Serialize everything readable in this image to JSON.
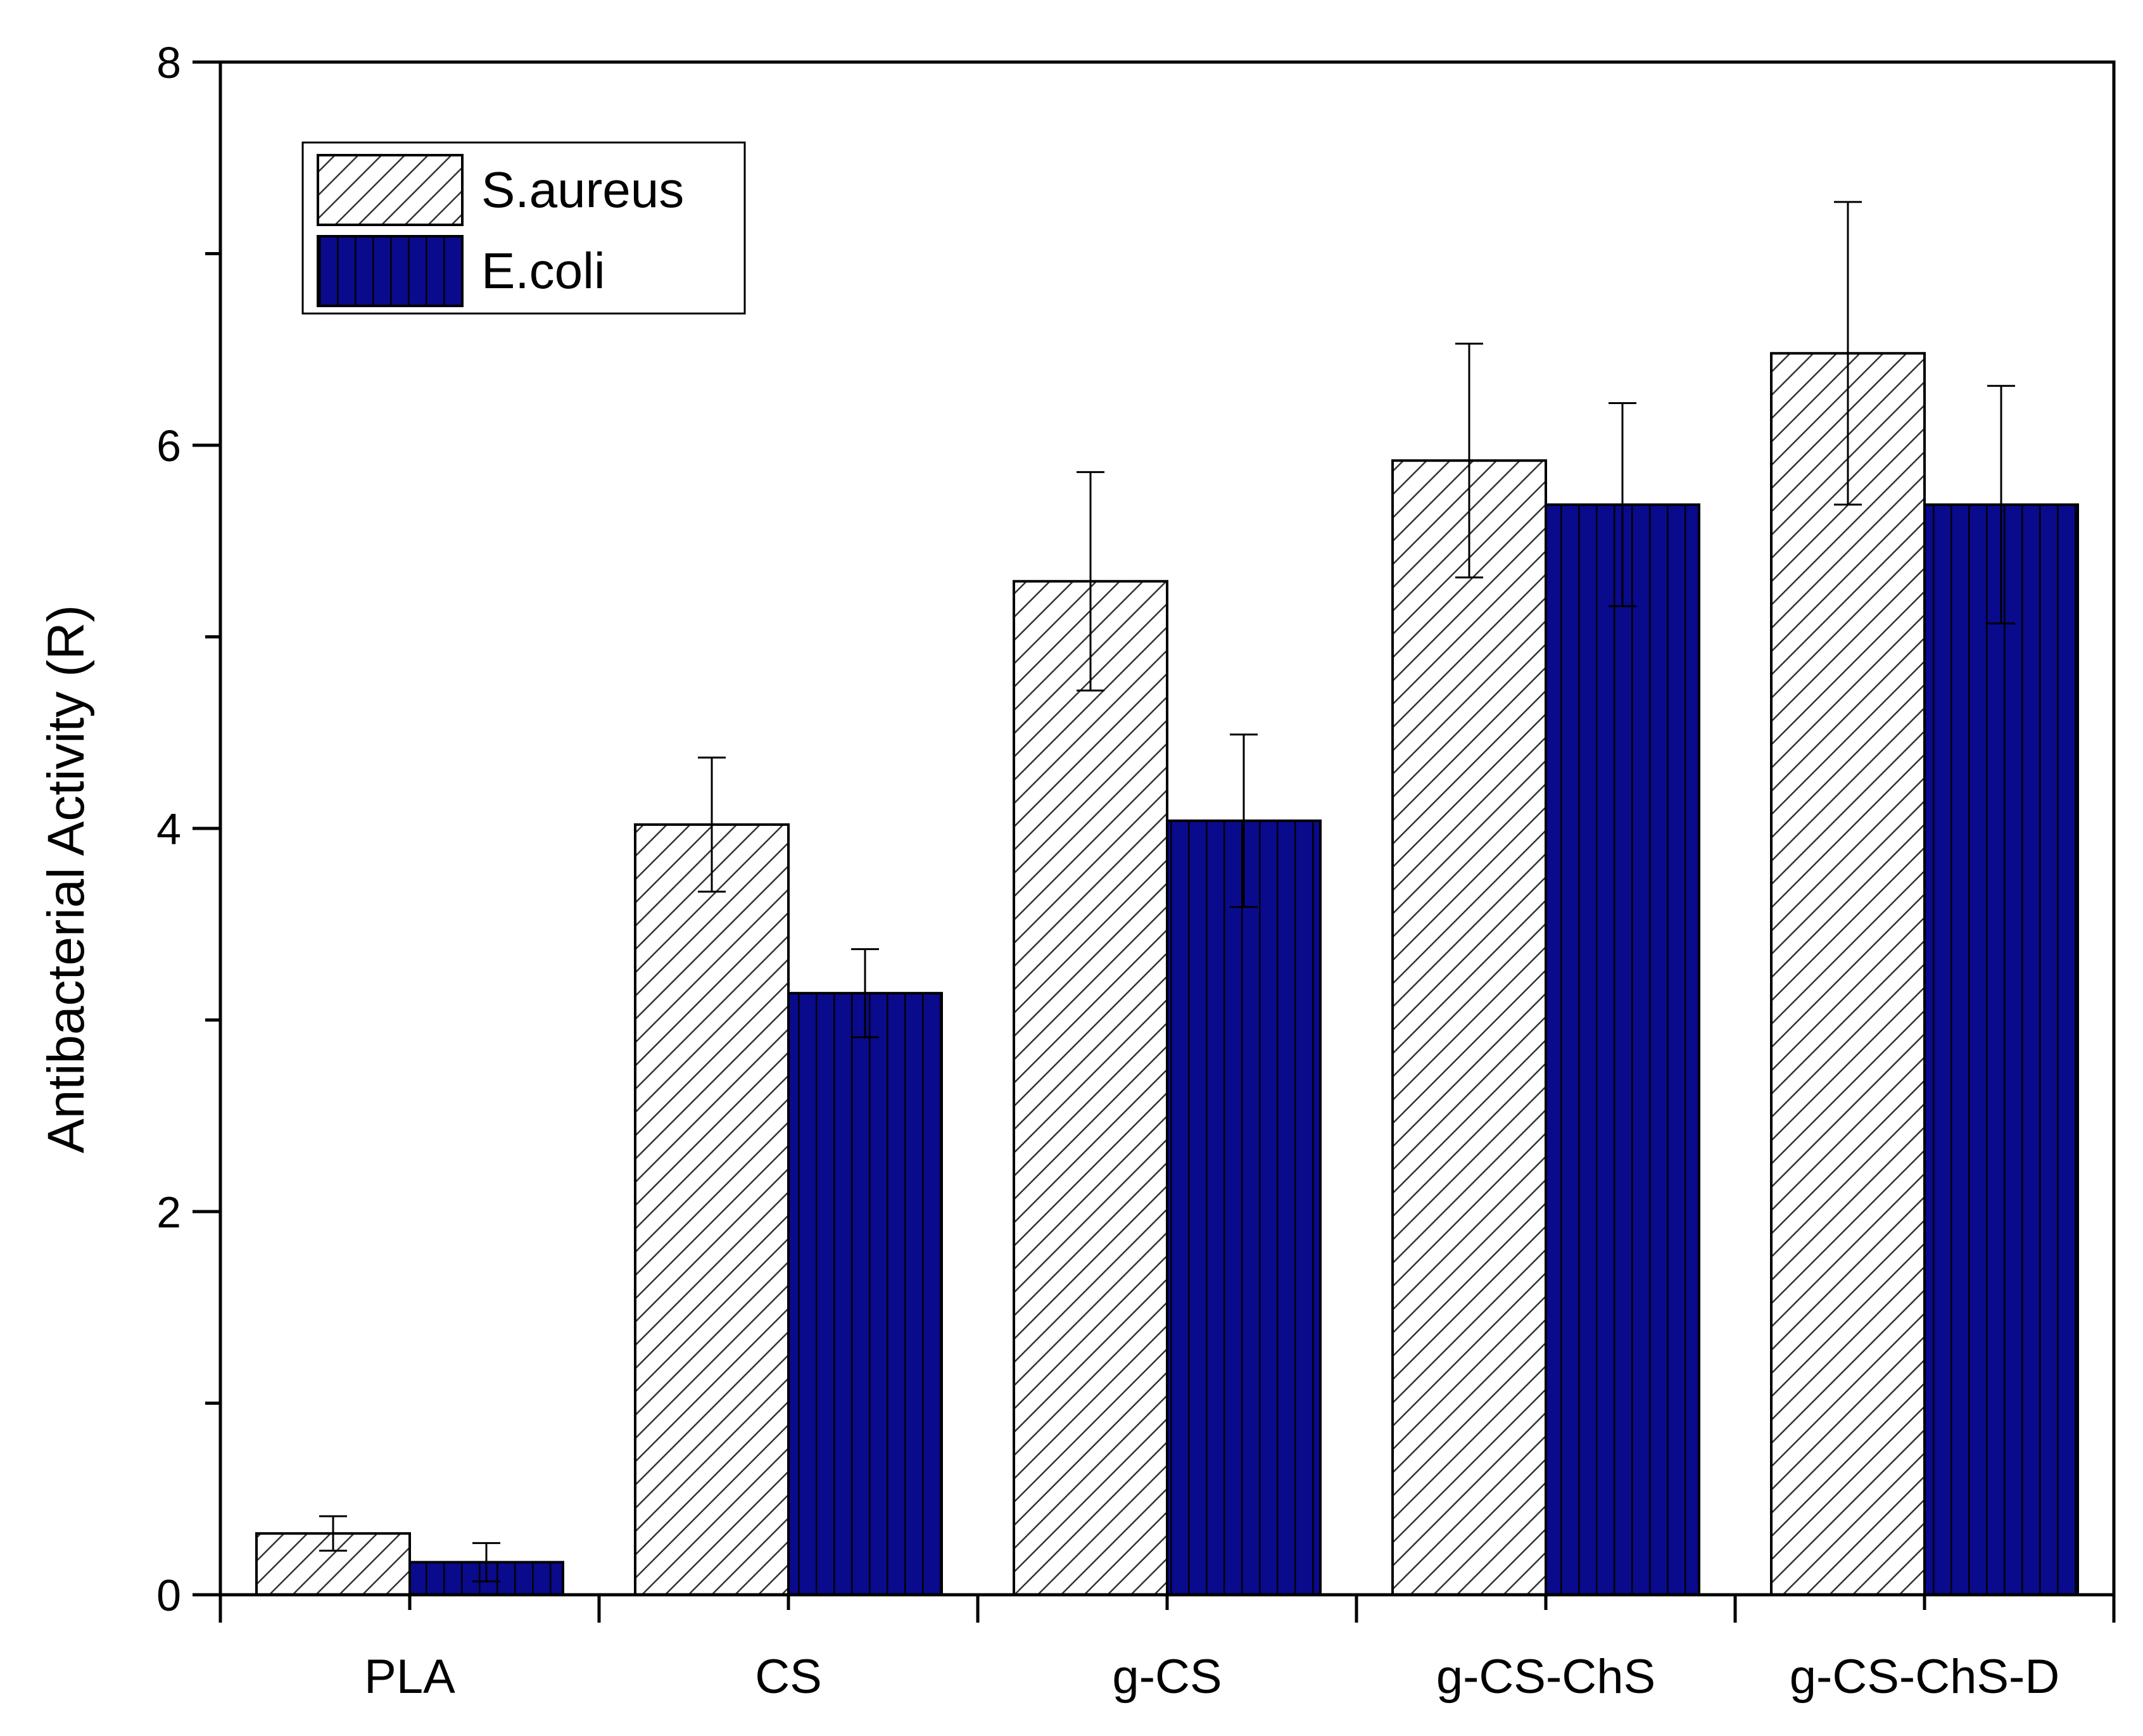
{
  "chart_data": {
    "type": "bar",
    "title": "",
    "xlabel": "",
    "ylabel": "Antibacterial Activity (R)",
    "ylim": [
      0,
      8
    ],
    "yticks_labeled": [
      0,
      2,
      4,
      6,
      8
    ],
    "yticks_minor": [
      1,
      3,
      5,
      7
    ],
    "categories": [
      "PLA",
      "CS",
      "g-CS",
      "g-CS-ChS",
      "g-CS-ChS-D"
    ],
    "series": [
      {
        "name": "S.aureus",
        "pattern": "diagonal-hatch",
        "fill": "#ffffff",
        "stroke": "#000000",
        "values": [
          0.32,
          4.02,
          5.29,
          5.92,
          6.48
        ],
        "errors": [
          0.09,
          0.35,
          0.57,
          0.61,
          0.79
        ]
      },
      {
        "name": "E.coli",
        "pattern": "vertical-lines",
        "fill": "#0a0a8c",
        "stroke": "#000000",
        "values": [
          0.17,
          3.14,
          4.04,
          5.69,
          5.69
        ],
        "errors": [
          0.1,
          0.23,
          0.45,
          0.53,
          0.62
        ]
      }
    ],
    "legend_position": "top-left",
    "grid": false
  }
}
